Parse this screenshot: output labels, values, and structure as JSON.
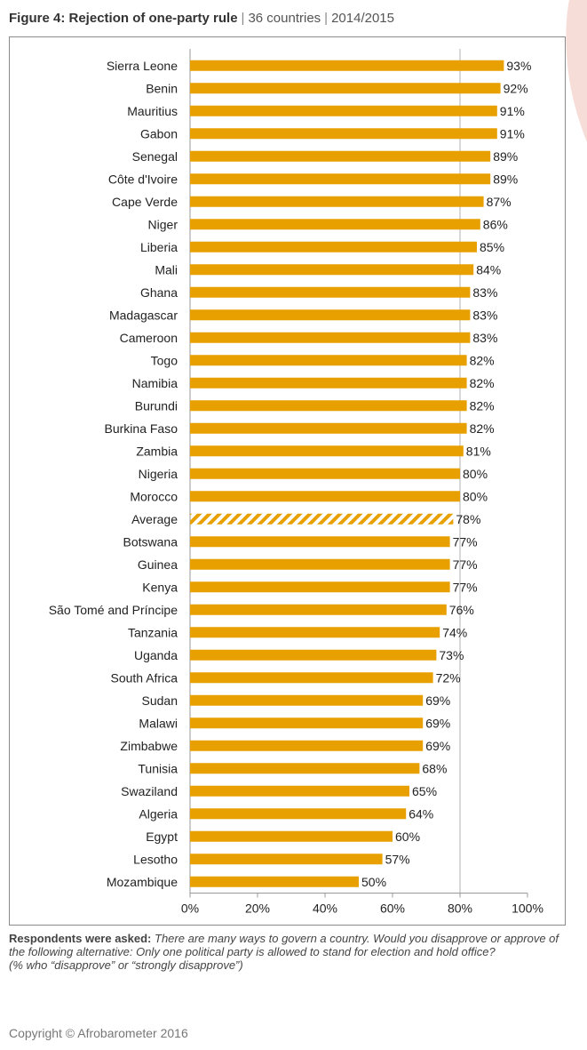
{
  "header": {
    "title": "Figure 4: Rejection of one-party rule",
    "countries": "36 countries",
    "years": "2014/2015"
  },
  "colors": {
    "bar": "#E8A000",
    "average_stripe": "#E8A000",
    "axis": "#999999",
    "text": "#222222",
    "brand": "#F6DDD8"
  },
  "chart_data": {
    "type": "bar",
    "orientation": "horizontal",
    "title": "Rejection of one-party rule",
    "xlabel": "",
    "ylabel": "",
    "xlim": [
      0,
      100
    ],
    "x_ticks": [
      "0%",
      "20%",
      "40%",
      "60%",
      "80%",
      "100%"
    ],
    "grid": "none",
    "categories": [
      "Sierra Leone",
      "Benin",
      "Mauritius",
      "Gabon",
      "Senegal",
      "Côte d'Ivoire",
      "Cape Verde",
      "Niger",
      "Liberia",
      "Mali",
      "Ghana",
      "Madagascar",
      "Cameroon",
      "Togo",
      "Namibia",
      "Burundi",
      "Burkina Faso",
      "Zambia",
      "Nigeria",
      "Morocco",
      "Average",
      "Botswana",
      "Guinea",
      "Kenya",
      "São Tomé and Príncipe",
      "Tanzania",
      "Uganda",
      "South Africa",
      "Sudan",
      "Malawi",
      "Zimbabwe",
      "Tunisia",
      "Swaziland",
      "Algeria",
      "Egypt",
      "Lesotho",
      "Mozambique"
    ],
    "values": [
      93,
      92,
      91,
      91,
      89,
      89,
      87,
      86,
      85,
      84,
      83,
      83,
      83,
      82,
      82,
      82,
      82,
      81,
      80,
      80,
      78,
      77,
      77,
      77,
      76,
      74,
      73,
      72,
      69,
      69,
      69,
      68,
      65,
      64,
      60,
      57,
      50
    ],
    "value_labels": [
      "93%",
      "92%",
      "91%",
      "91%",
      "89%",
      "89%",
      "87%",
      "86%",
      "85%",
      "84%",
      "83%",
      "83%",
      "83%",
      "82%",
      "82%",
      "82%",
      "82%",
      "81%",
      "80%",
      "80%",
      "78%",
      "77%",
      "77%",
      "77%",
      "76%",
      "74%",
      "73%",
      "72%",
      "69%",
      "69%",
      "69%",
      "68%",
      "65%",
      "64%",
      "60%",
      "57%",
      "50%"
    ],
    "highlight_category": "Average",
    "highlight_style": "hatched"
  },
  "footnote": {
    "label": "Respondents were asked:",
    "question": "There are many ways to govern a country. Would you disapprove or approve of the following alternative: Only one political party is allowed to stand for election and hold office?",
    "note": "(% who “disapprove” or “strongly disapprove”)"
  },
  "copyright": "Copyright © Afrobarometer 2016"
}
